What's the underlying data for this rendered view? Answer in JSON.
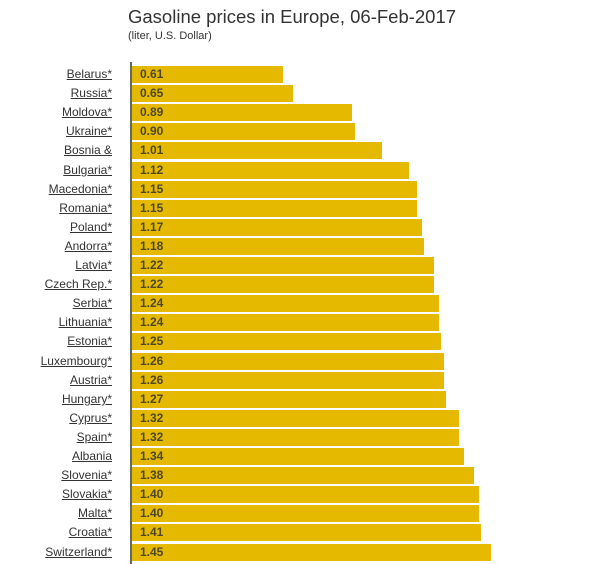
{
  "chart_data": {
    "type": "bar",
    "orientation": "horizontal",
    "title": "Gasoline prices in Europe, 06-Feb-2017",
    "subtitle": "(liter, U.S. Dollar)",
    "xlabel": "",
    "ylabel": "",
    "xlim": [
      0,
      1.5
    ],
    "grid": false,
    "bar_color": "#e4b900",
    "categories": [
      "Belarus*",
      "Russia*",
      "Moldova*",
      "Ukraine*",
      "Bosnia &",
      "Bulgaria*",
      "Macedonia*",
      "Romania*",
      "Poland*",
      "Andorra*",
      "Latvia*",
      "Czech Rep.*",
      "Serbia*",
      "Lithuania*",
      "Estonia*",
      "Luxembourg*",
      "Austria*",
      "Hungary*",
      "Cyprus*",
      "Spain*",
      "Albania",
      "Slovenia*",
      "Slovakia*",
      "Malta*",
      "Croatia*",
      "Switzerland*"
    ],
    "values": [
      0.61,
      0.65,
      0.89,
      0.9,
      1.01,
      1.12,
      1.15,
      1.15,
      1.17,
      1.18,
      1.22,
      1.22,
      1.24,
      1.24,
      1.25,
      1.26,
      1.26,
      1.27,
      1.32,
      1.32,
      1.34,
      1.38,
      1.4,
      1.4,
      1.41,
      1.45
    ],
    "value_labels": [
      "0.61",
      "0.65",
      "0.89",
      "0.90",
      "1.01",
      "1.12",
      "1.15",
      "1.15",
      "1.17",
      "1.18",
      "1.22",
      "1.22",
      "1.24",
      "1.24",
      "1.25",
      "1.26",
      "1.26",
      "1.27",
      "1.32",
      "1.32",
      "1.34",
      "1.38",
      "1.40",
      "1.40",
      "1.41",
      "1.45"
    ]
  }
}
